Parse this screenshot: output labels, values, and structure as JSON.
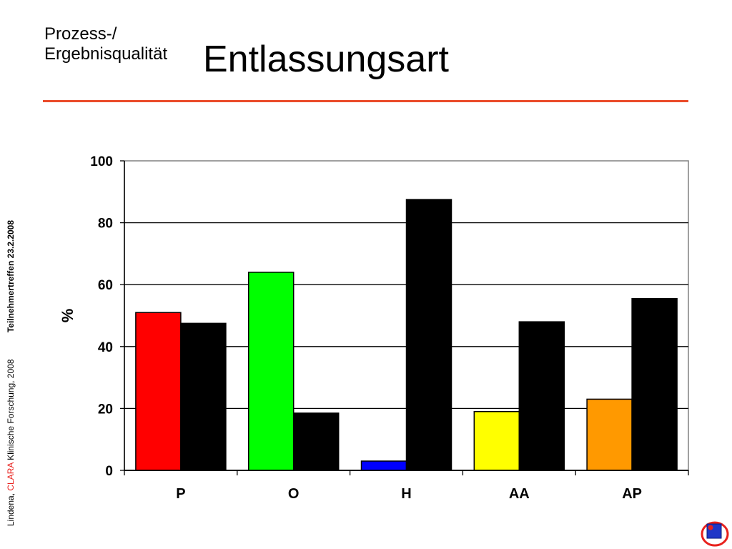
{
  "slide": {
    "subtitle_line1": "Prozess-/",
    "subtitle_line2": "Ergebnisqualität",
    "title": "Entlassungsart",
    "footer_authors": "Lindena, ",
    "footer_brand": "CLARA",
    "footer_org": " Klinische Forschung, 2008",
    "footer_event": "Teilnehmertreffen 23.2.2008",
    "accent_color": "#ea4b2a",
    "brand_color": "#e8211d"
  },
  "chart_data": {
    "type": "bar",
    "title": "",
    "xlabel": "",
    "ylabel": "%",
    "ylim": [
      0,
      100
    ],
    "yticks": [
      0,
      20,
      40,
      60,
      80,
      100
    ],
    "grid": true,
    "legend": "none",
    "categories": [
      "P",
      "O",
      "H",
      "AA",
      "AP"
    ],
    "series": [
      {
        "values": [
          51,
          64,
          3,
          19,
          23
        ],
        "colors": [
          "#ff0000",
          "#00ff00",
          "#0000ff",
          "#ffff00",
          "#ff9900"
        ]
      },
      {
        "values": [
          47.5,
          18.5,
          87.5,
          48,
          55.5
        ],
        "color": "#000000"
      }
    ]
  }
}
